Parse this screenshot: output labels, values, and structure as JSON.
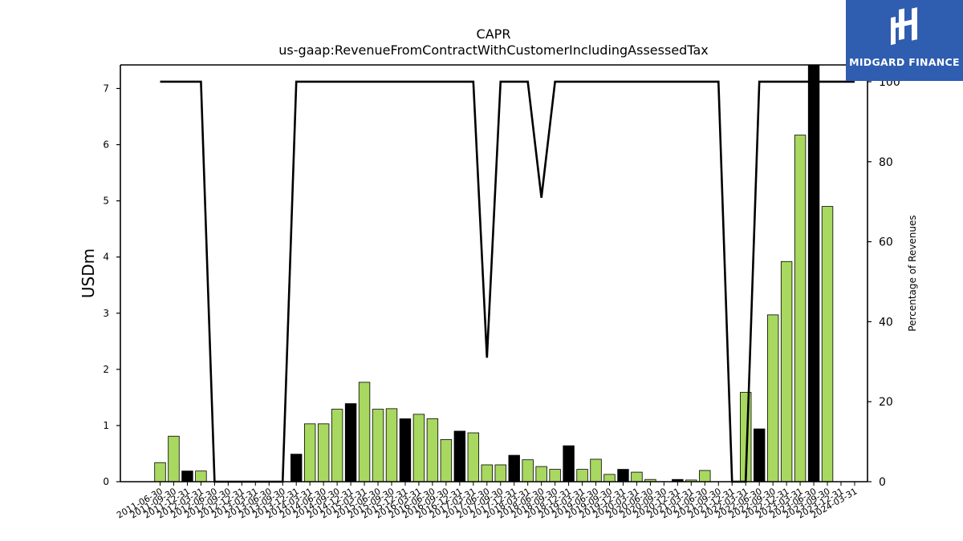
{
  "logo": {
    "text": "MIDGARD FINANCE",
    "background": "#2f5db0"
  },
  "chart_data": {
    "type": "bar",
    "title": "CAPR",
    "subtitle": "us-gaap:RevenueFromContractWithCustomerIncludingAssessedTax",
    "ylabel": "USDm",
    "y2label": "Percentage of Revenues",
    "ylim": [
      0,
      7.42
    ],
    "y2lim": [
      0,
      104.2
    ],
    "yticks": [
      0,
      1,
      2,
      3,
      4,
      5,
      6,
      7
    ],
    "y2ticks": [
      0,
      20,
      40,
      60,
      80,
      100
    ],
    "bar_color_q": "#a8d860",
    "bar_color_fy": "#000000",
    "line_color": "#000000",
    "x_tick_labels": [
      "2011-06-30",
      "2011-09-30",
      "2011-12-31",
      "2012-03-31",
      "2012-06-30",
      "2012-09-30",
      "2012-12-31",
      "2013-03-31",
      "2013-06-30",
      "2013-09-30",
      "2013-12-31",
      "2014-03-31",
      "2014-06-30",
      "2014-09-30",
      "2014-12-31",
      "2015-03-31",
      "2015-06-30",
      "2015-09-30",
      "2015-12-31",
      "2016-03-31",
      "2016-06-30",
      "2016-09-30",
      "2016-12-31",
      "2017-03-31",
      "2017-06-30",
      "2017-09-30",
      "2017-12-31",
      "2018-03-31",
      "2018-06-30",
      "2018-09-30",
      "2018-12-31",
      "2019-03-31",
      "2019-06-30",
      "2019-09-30",
      "2019-12-31",
      "2020-03-31",
      "2020-06-30",
      "2020-09-30",
      "2020-12-31",
      "2021-03-31",
      "2021-06-30",
      "2021-09-30",
      "2021-12-31",
      "2022-03-31",
      "2022-06-30",
      "2022-09-30",
      "2022-12-31",
      "2023-03-31",
      "2023-06-30",
      "2023-09-30",
      "2023-12-31",
      "2024-03-31"
    ],
    "bars": [
      {
        "x": "2011-06-30",
        "value": 0.34,
        "fy": false
      },
      {
        "x": "2011-09-30",
        "value": 0.81,
        "fy": false
      },
      {
        "x": "2011-12-31",
        "value": 0.19,
        "fy": true
      },
      {
        "x": "2012-03-31",
        "value": 0.19,
        "fy": false
      },
      {
        "x": "2012-06-30",
        "value": 0,
        "fy": false
      },
      {
        "x": "2012-09-30",
        "value": 0,
        "fy": false
      },
      {
        "x": "2012-12-31",
        "value": 0,
        "fy": true
      },
      {
        "x": "2013-03-31",
        "value": 0,
        "fy": false
      },
      {
        "x": "2013-06-30",
        "value": 0,
        "fy": false
      },
      {
        "x": "2013-09-30",
        "value": 0,
        "fy": false
      },
      {
        "x": "2013-12-31",
        "value": 0.49,
        "fy": true
      },
      {
        "x": "2014-03-31",
        "value": 1.03,
        "fy": false
      },
      {
        "x": "2014-06-30",
        "value": 1.03,
        "fy": false
      },
      {
        "x": "2014-09-30",
        "value": 1.29,
        "fy": false
      },
      {
        "x": "2014-12-31",
        "value": 1.39,
        "fy": true
      },
      {
        "x": "2015-03-31",
        "value": 1.77,
        "fy": false
      },
      {
        "x": "2015-06-30",
        "value": 1.29,
        "fy": false
      },
      {
        "x": "2015-09-30",
        "value": 1.3,
        "fy": false
      },
      {
        "x": "2015-12-31",
        "value": 1.12,
        "fy": true
      },
      {
        "x": "2016-03-31",
        "value": 1.2,
        "fy": false
      },
      {
        "x": "2016-06-30",
        "value": 1.12,
        "fy": false
      },
      {
        "x": "2016-09-30",
        "value": 0.75,
        "fy": false
      },
      {
        "x": "2016-12-31",
        "value": 0.9,
        "fy": true
      },
      {
        "x": "2017-03-31",
        "value": 0.87,
        "fy": false
      },
      {
        "x": "2017-06-30",
        "value": 0.3,
        "fy": false
      },
      {
        "x": "2017-09-30",
        "value": 0.3,
        "fy": false
      },
      {
        "x": "2017-12-31",
        "value": 0.47,
        "fy": true
      },
      {
        "x": "2018-03-31",
        "value": 0.39,
        "fy": false
      },
      {
        "x": "2018-06-30",
        "value": 0.27,
        "fy": false
      },
      {
        "x": "2018-09-30",
        "value": 0.22,
        "fy": false
      },
      {
        "x": "2018-12-31",
        "value": 0.64,
        "fy": true
      },
      {
        "x": "2019-03-31",
        "value": 0.22,
        "fy": false
      },
      {
        "x": "2019-06-30",
        "value": 0.4,
        "fy": false
      },
      {
        "x": "2019-09-30",
        "value": 0.13,
        "fy": false
      },
      {
        "x": "2019-12-31",
        "value": 0.22,
        "fy": true
      },
      {
        "x": "2020-03-31",
        "value": 0.17,
        "fy": false
      },
      {
        "x": "2020-06-30",
        "value": 0.04,
        "fy": false
      },
      {
        "x": "2020-09-30",
        "value": 0,
        "fy": false
      },
      {
        "x": "2020-12-31",
        "value": 0.04,
        "fy": true
      },
      {
        "x": "2021-03-31",
        "value": 0.03,
        "fy": false
      },
      {
        "x": "2021-06-30",
        "value": 0.2,
        "fy": false
      },
      {
        "x": "2021-09-30",
        "value": 0,
        "fy": false
      },
      {
        "x": "2021-12-31",
        "value": 0,
        "fy": true
      },
      {
        "x": "2022-03-31",
        "value": 1.59,
        "fy": false
      },
      {
        "x": "2022-06-30",
        "value": 0.94,
        "fy": true
      },
      {
        "x": "2022-09-30",
        "value": 2.97,
        "fy": false
      },
      {
        "x": "2022-12-31",
        "value": 3.92,
        "fy": false
      },
      {
        "x": "2023-03-31",
        "value": 6.17,
        "fy": false
      },
      {
        "x": "2023-06-30",
        "value": 7.5,
        "fy": true
      },
      {
        "x": "2023-09-30",
        "value": 4.9,
        "fy": false
      },
      {
        "x": "2023-12-31",
        "value": 0,
        "fy": false
      },
      {
        "x": "2024-03-31",
        "value": 0,
        "fy": false
      }
    ],
    "percentage_series": [
      100,
      100,
      100,
      100,
      0,
      0,
      0,
      0,
      0,
      0,
      100,
      100,
      100,
      100,
      100,
      100,
      100,
      100,
      100,
      100,
      100,
      100,
      100,
      100,
      31,
      100,
      100,
      100,
      71,
      100,
      100,
      100,
      100,
      100,
      100,
      100,
      100,
      100,
      100,
      100,
      100,
      100,
      0,
      0,
      100,
      100,
      100,
      100,
      100,
      100,
      100,
      100
    ]
  }
}
